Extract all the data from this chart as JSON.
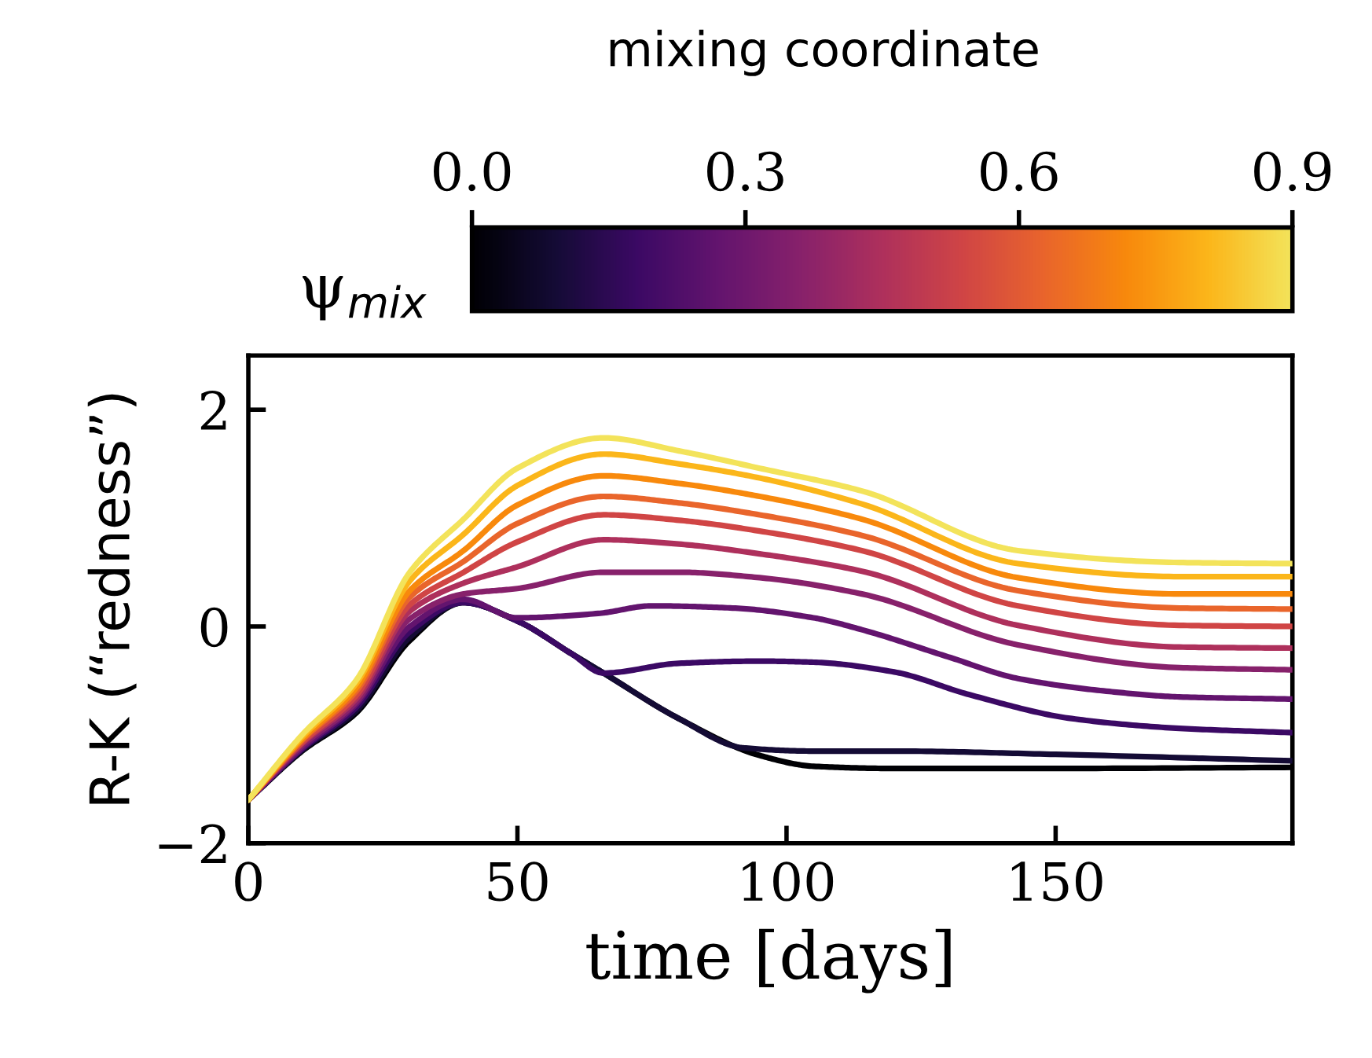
{
  "chart_data": {
    "type": "line",
    "xlabel": "time [days]",
    "ylabel": "R-K (“redness”)",
    "clabel": "mixing coordinate",
    "annotations": [
      "ψ$_{mix}$"
    ],
    "xlim": [
      0,
      194
    ],
    "xticks": [
      0,
      50,
      100,
      150
    ],
    "ylim": [
      -2,
      2.5
    ],
    "yticks": [
      {
        "value": -2,
        "label": "−2"
      },
      0,
      2
    ],
    "clim": [
      0,
      0.9
    ],
    "cticks": [
      {
        "value": 0,
        "label": "0.0"
      },
      0.3,
      0.6,
      0.9
    ],
    "grid": false,
    "legend": false,
    "line_style": "solid",
    "marker": "none",
    "series": [
      {
        "color": "#000004",
        "x": [
          0,
          10,
          20,
          30,
          40,
          50,
          60,
          66,
          80,
          95,
          105,
          120,
          150,
          194
        ],
        "values": [
          -1.6,
          -1.15,
          -0.8,
          -0.13,
          0.22,
          0.05,
          -0.25,
          -0.43,
          -0.85,
          -1.19,
          -1.29,
          -1.31,
          -1.31,
          -1.3
        ]
      },
      {
        "color": "#140b35",
        "x": [
          0,
          10,
          20,
          30,
          40,
          50,
          60,
          66,
          80,
          92,
          105,
          120,
          150,
          194
        ],
        "values": [
          -1.6,
          -1.14,
          -0.78,
          -0.1,
          0.22,
          0.05,
          -0.25,
          -0.43,
          -0.85,
          -1.12,
          -1.15,
          -1.15,
          -1.18,
          -1.24
        ]
      },
      {
        "color": "#3b0964",
        "x": [
          0,
          10,
          20,
          30,
          40,
          50,
          60,
          66,
          80,
          95,
          105,
          120,
          134,
          153,
          173,
          194
        ],
        "values": [
          -1.6,
          -1.13,
          -0.75,
          -0.05,
          0.22,
          0.05,
          -0.25,
          -0.43,
          -0.34,
          -0.32,
          -0.33,
          -0.42,
          -0.63,
          -0.85,
          -0.94,
          -0.98
        ]
      },
      {
        "color": "#63146e",
        "x": [
          0,
          10,
          20,
          30,
          40,
          50,
          65,
          75,
          90,
          105,
          114,
          130,
          143,
          160,
          173,
          194
        ],
        "values": [
          -1.6,
          -1.12,
          -0.72,
          0.0,
          0.25,
          0.08,
          0.12,
          0.19,
          0.17,
          0.08,
          -0.03,
          -0.28,
          -0.48,
          -0.6,
          -0.65,
          -0.67
        ]
      },
      {
        "color": "#87216b",
        "x": [
          0,
          10,
          20,
          30,
          40,
          50,
          66,
          80,
          95,
          114,
          143,
          173,
          194
        ],
        "values": [
          -1.6,
          -1.1,
          -0.7,
          0.07,
          0.3,
          0.35,
          0.5,
          0.5,
          0.45,
          0.3,
          -0.17,
          -0.38,
          -0.4
        ]
      },
      {
        "color": "#ae305c",
        "x": [
          0,
          10,
          20,
          30,
          40,
          50,
          66,
          80,
          95,
          114,
          143,
          173,
          194
        ],
        "values": [
          -1.6,
          -1.08,
          -0.67,
          0.14,
          0.4,
          0.55,
          0.8,
          0.76,
          0.67,
          0.51,
          0.01,
          -0.19,
          -0.2
        ]
      },
      {
        "color": "#d04545",
        "x": [
          0,
          10,
          20,
          30,
          40,
          50,
          66,
          80,
          95,
          114,
          143,
          173,
          194
        ],
        "values": [
          -1.6,
          -1.07,
          -0.64,
          0.2,
          0.5,
          0.78,
          1.03,
          0.98,
          0.88,
          0.7,
          0.19,
          0.01,
          0.0
        ]
      },
      {
        "color": "#e9652b",
        "x": [
          0,
          10,
          20,
          30,
          40,
          50,
          66,
          80,
          95,
          114,
          143,
          173,
          194
        ],
        "values": [
          -1.6,
          -1.05,
          -0.6,
          0.27,
          0.6,
          0.95,
          1.2,
          1.14,
          1.03,
          0.84,
          0.33,
          0.17,
          0.16
        ]
      },
      {
        "color": "#f8890c",
        "x": [
          0,
          10,
          20,
          30,
          40,
          50,
          66,
          80,
          95,
          114,
          143,
          173,
          194
        ],
        "values": [
          -1.6,
          -1.04,
          -0.57,
          0.33,
          0.7,
          1.12,
          1.39,
          1.32,
          1.2,
          0.99,
          0.45,
          0.3,
          0.3
        ]
      },
      {
        "color": "#fbb61a",
        "x": [
          0,
          10,
          20,
          30,
          40,
          50,
          66,
          80,
          95,
          114,
          143,
          173,
          194
        ],
        "values": [
          -1.6,
          -1.02,
          -0.53,
          0.42,
          0.85,
          1.3,
          1.59,
          1.5,
          1.37,
          1.13,
          0.58,
          0.46,
          0.46
        ]
      },
      {
        "color": "#f3e35a",
        "x": [
          0,
          10,
          20,
          30,
          40,
          50,
          66,
          80,
          95,
          114,
          143,
          173,
          194
        ],
        "values": [
          -1.6,
          -1.0,
          -0.5,
          0.5,
          0.99,
          1.46,
          1.74,
          1.62,
          1.46,
          1.25,
          0.7,
          0.59,
          0.58
        ]
      }
    ]
  }
}
